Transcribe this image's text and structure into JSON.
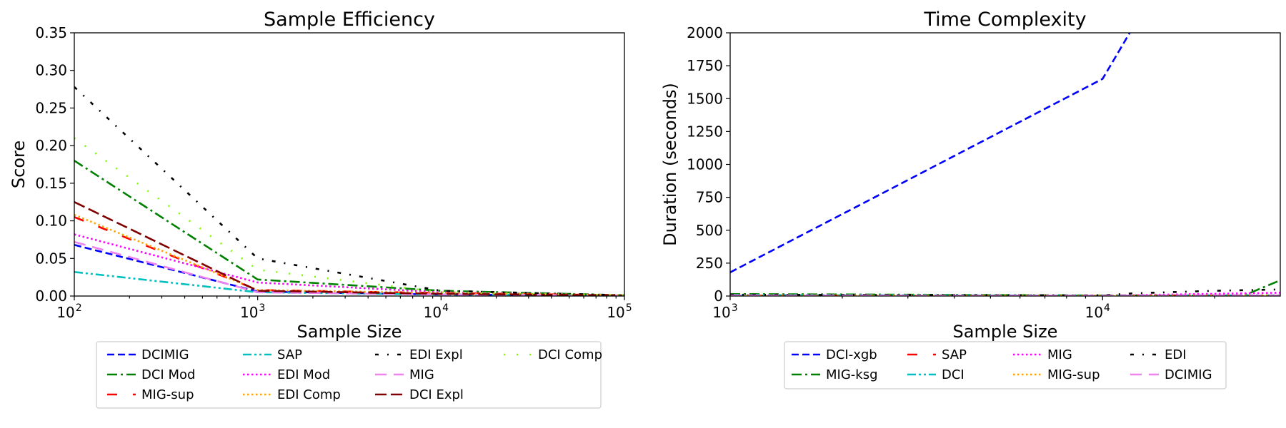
{
  "chart_data": [
    {
      "type": "line",
      "title": "Sample Efficiency",
      "xlabel": "Sample Size",
      "ylabel": "Score",
      "xscale": "log",
      "xlim": [
        100,
        100000
      ],
      "ylim": [
        0,
        0.35
      ],
      "xticks": [
        {
          "base": "10",
          "exp": "2"
        },
        {
          "base": "10",
          "exp": "3"
        },
        {
          "base": "10",
          "exp": "4"
        },
        {
          "base": "10",
          "exp": "5"
        }
      ],
      "yticks": [
        "0.00",
        "0.05",
        "0.10",
        "0.15",
        "0.20",
        "0.25",
        "0.30",
        "0.35"
      ],
      "x": [
        100,
        1000,
        10000,
        100000
      ],
      "legend_position": "bottom",
      "legend_columns": 4,
      "series": [
        {
          "name": "DCIMIG",
          "color": "#0000ff",
          "dash": "dashed",
          "values": [
            0.068,
            0.006,
            0.002,
            0.0005
          ]
        },
        {
          "name": "DCI Mod",
          "color": "#008000",
          "dash": "dashdot",
          "values": [
            0.18,
            0.022,
            0.007,
            0.001
          ]
        },
        {
          "name": "MIG-sup",
          "color": "#ff0000",
          "dash": "loosedash",
          "values": [
            0.105,
            0.008,
            0.004,
            0.001
          ]
        },
        {
          "name": "SAP",
          "color": "#00bfbf",
          "dash": "dashdotdot",
          "values": [
            0.032,
            0.005,
            0.002,
            0.0003
          ]
        },
        {
          "name": "EDI Mod",
          "color": "#ff00ff",
          "dash": "dotted",
          "values": [
            0.082,
            0.018,
            0.005,
            0.001
          ]
        },
        {
          "name": "EDI Comp",
          "color": "#ffa500",
          "dash": "dotted",
          "values": [
            0.108,
            0.008,
            0.004,
            0.001
          ]
        },
        {
          "name": "EDI Expl",
          "color": "#000000",
          "dash": "loosedashdot",
          "values": [
            0.278,
            0.05,
            0.007,
            0.001
          ]
        },
        {
          "name": "MIG",
          "color": "#ee82ee",
          "dash": "longdash",
          "values": [
            0.072,
            0.005,
            0.002,
            0.0005
          ]
        },
        {
          "name": "DCI Expl",
          "color": "#800000",
          "dash": "longdashgap",
          "values": [
            0.125,
            0.007,
            0.003,
            0.0008
          ]
        },
        {
          "name": "DCI Comp",
          "color": "#7cfc00",
          "dash": "loosedot",
          "values": [
            0.21,
            0.035,
            0.005,
            0.001
          ]
        }
      ]
    },
    {
      "type": "line",
      "title": "Time Complexity",
      "xlabel": "Sample Size",
      "ylabel": "Duration (seconds)",
      "xscale": "log",
      "xlim": [
        1000,
        30000
      ],
      "ylim": [
        0,
        2000
      ],
      "xticks": [
        {
          "base": "10",
          "exp": "3"
        },
        {
          "base": "10",
          "exp": "4"
        }
      ],
      "yticks": [
        "0",
        "250",
        "500",
        "750",
        "1000",
        "1250",
        "1500",
        "1750",
        "2000"
      ],
      "legend_position": "bottom",
      "legend_columns": 4,
      "series": [
        {
          "name": "DCI-xgb",
          "color": "#0000ff",
          "dash": "dashed",
          "x": [
            1000,
            10000,
            12000
          ],
          "values": [
            180,
            1650,
            2030
          ]
        },
        {
          "name": "MIG-ksg",
          "color": "#008000",
          "dash": "dashdot",
          "x": [
            1000,
            10000,
            24000,
            30000
          ],
          "values": [
            15,
            5,
            5,
            120
          ]
        },
        {
          "name": "SAP",
          "color": "#ff0000",
          "dash": "loosedash",
          "x": [
            1000,
            10000,
            30000
          ],
          "values": [
            3,
            2,
            3
          ]
        },
        {
          "name": "DCI",
          "color": "#00bfbf",
          "dash": "dashdotdot",
          "x": [
            1000,
            10000,
            30000
          ],
          "values": [
            8,
            4,
            6
          ]
        },
        {
          "name": "MIG",
          "color": "#ff00ff",
          "dash": "dotted",
          "x": [
            1000,
            10000,
            30000
          ],
          "values": [
            5,
            3,
            25
          ]
        },
        {
          "name": "MIG-sup",
          "color": "#ffa500",
          "dash": "dotted",
          "x": [
            1000,
            10000,
            30000
          ],
          "values": [
            4,
            3,
            5
          ]
        },
        {
          "name": "EDI",
          "color": "#000000",
          "dash": "loosedashdot",
          "x": [
            1000,
            10000,
            12000,
            20000,
            30000
          ],
          "values": [
            10,
            5,
            20,
            40,
            50
          ]
        },
        {
          "name": "DCIMIG",
          "color": "#ee82ee",
          "dash": "longdash",
          "x": [
            1000,
            10000,
            30000
          ],
          "values": [
            4,
            3,
            4
          ]
        }
      ]
    }
  ]
}
